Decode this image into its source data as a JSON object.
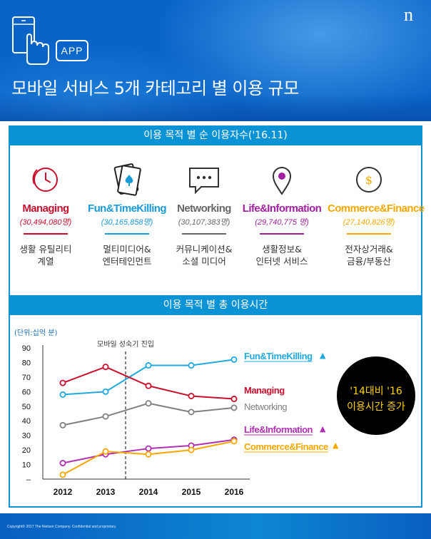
{
  "header": {
    "app_badge": "APP",
    "logo": "n",
    "title": "모바일 서비스 5개 카테고리 별 이용 규모",
    "icon": "hand-touch-phone-icon"
  },
  "section1": {
    "title": "이용 목적 별 순 이용자수('16.11)",
    "categories": [
      {
        "name": "Managing",
        "count": "(30,494,080명)",
        "desc1": "생활 유틸리티",
        "desc2": "계열",
        "color": "#c8102e",
        "icon": "clock-icon"
      },
      {
        "name": "Fun&TimeKilling",
        "count": "(30,165,858명)",
        "desc1": "멀티미디어&",
        "desc2": "엔터테인먼트",
        "color": "#1a9ad6",
        "icon": "playing-card-icon"
      },
      {
        "name": "Networking",
        "count": "(30,107,383명)",
        "desc1": "커뮤니케이션&",
        "desc2": "소셜 미디어",
        "color": "#666666",
        "icon": "chat-bubble-icon"
      },
      {
        "name": "Life&Information",
        "count": "(29,740,775 명)",
        "desc1": "생활정보&",
        "desc2": "인터넷 서비스",
        "color": "#a020a0",
        "icon": "map-pin-icon"
      },
      {
        "name": "Commerce&Finance",
        "count": "(27,140,826명)",
        "desc1": "전자상거래&",
        "desc2": "금융/부동산",
        "color": "#f5a800",
        "icon": "dollar-coin-icon"
      }
    ]
  },
  "section2": {
    "title": "이용 목적 별 총 이용시간",
    "callout_line1": "'14대비 '16",
    "callout_line2": "이용시간 증가"
  },
  "chart_data": {
    "type": "line",
    "unit_label": "(단위:십억 분)",
    "x": [
      "2012",
      "2013",
      "2014",
      "2015",
      "2016"
    ],
    "ylim": [
      0,
      90
    ],
    "yticks": [
      "–",
      "10",
      "20",
      "30",
      "40",
      "50",
      "60",
      "70",
      "80",
      "90"
    ],
    "annotation": "모바일 성숙기 진입",
    "series": [
      {
        "name": "Fun&TimeKilling",
        "values": [
          58,
          60,
          78,
          78,
          82
        ],
        "color": "#1fa9df",
        "marker": "▲"
      },
      {
        "name": "Managing",
        "values": [
          66,
          77,
          64,
          57,
          55
        ],
        "color": "#c8102e",
        "marker": ""
      },
      {
        "name": "Networking",
        "values": [
          37,
          43,
          52,
          46,
          49
        ],
        "color": "#808080",
        "marker": ""
      },
      {
        "name": "Life&Information",
        "values": [
          11,
          17,
          21,
          23,
          27
        ],
        "color": "#b030b0",
        "marker": "▲"
      },
      {
        "name": "Commerce&Finance",
        "values": [
          3,
          19,
          17,
          20,
          26
        ],
        "color": "#f5a800",
        "marker": "▲"
      }
    ]
  },
  "footer": {
    "copyright": "Copyright© 2017 The Nielsen Company. Confidential and proprietary."
  }
}
